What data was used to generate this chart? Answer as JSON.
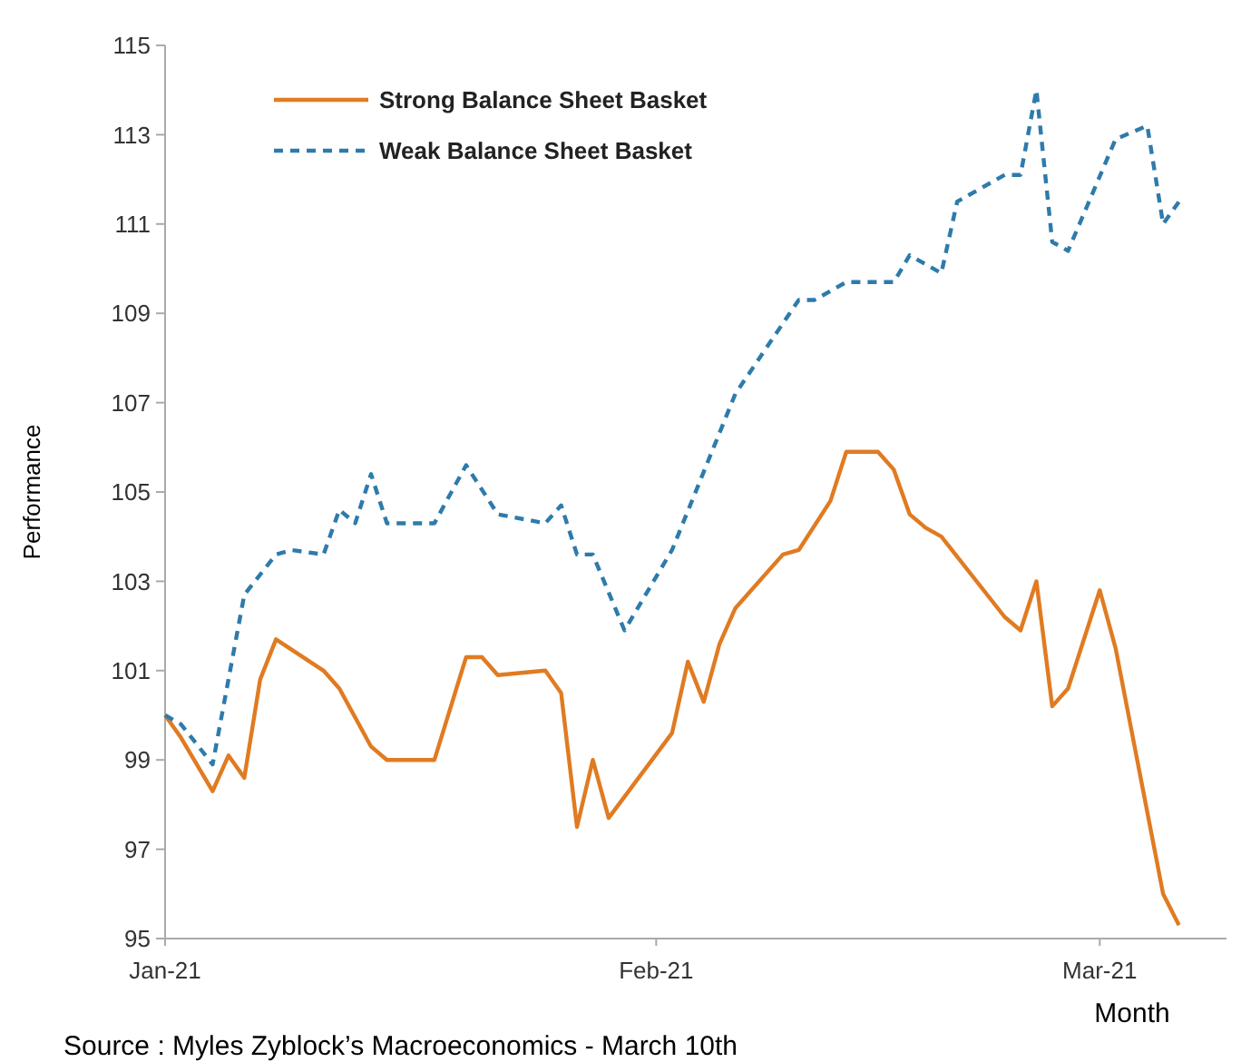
{
  "chart_data": {
    "type": "line",
    "xlabel": "Month",
    "ylabel": "Performance",
    "annotations": [
      "Source : Myles Zyblock’s Macroeconomics - March 10th"
    ],
    "xlim": [
      "2021-01-01",
      "2021-03-09"
    ],
    "xticks": [
      {
        "value": "2021-01-01",
        "label": "Jan-21"
      },
      {
        "value": "2021-02-01",
        "label": "Feb-21"
      },
      {
        "value": "2021-03-01",
        "label": "Mar-21"
      }
    ],
    "ylim": [
      95,
      115
    ],
    "yticks": [
      95,
      97,
      99,
      101,
      103,
      105,
      107,
      109,
      111,
      113,
      115
    ],
    "grid": false,
    "legend": "top left",
    "marker": "none",
    "series": [
      {
        "name": "Strong Balance Sheet Basket",
        "color": "#e07b22",
        "line_style": "solid",
        "x": [
          "2021-01-01",
          "2021-01-02",
          "2021-01-04",
          "2021-01-05",
          "2021-01-06",
          "2021-01-07",
          "2021-01-08",
          "2021-01-11",
          "2021-01-12",
          "2021-01-14",
          "2021-01-15",
          "2021-01-18",
          "2021-01-20",
          "2021-01-21",
          "2021-01-22",
          "2021-01-25",
          "2021-01-26",
          "2021-01-27",
          "2021-01-28",
          "2021-01-29",
          "2021-02-02",
          "2021-02-03",
          "2021-02-04",
          "2021-02-05",
          "2021-02-06",
          "2021-02-09",
          "2021-02-10",
          "2021-02-12",
          "2021-02-13",
          "2021-02-15",
          "2021-02-16",
          "2021-02-17",
          "2021-02-18",
          "2021-02-19",
          "2021-02-23",
          "2021-02-24",
          "2021-02-25",
          "2021-02-26",
          "2021-02-27",
          "2021-03-01",
          "2021-03-02",
          "2021-03-05",
          "2021-03-06"
        ],
        "values": [
          100,
          99.5,
          98.3,
          99.1,
          98.6,
          100.8,
          101.7,
          101.0,
          100.6,
          99.3,
          99.0,
          99.0,
          101.3,
          101.3,
          100.9,
          101.0,
          100.5,
          97.5,
          99.0,
          97.7,
          99.6,
          101.2,
          100.3,
          101.6,
          102.4,
          103.6,
          103.7,
          104.8,
          105.9,
          105.9,
          105.5,
          104.5,
          104.2,
          104.0,
          102.2,
          101.9,
          103.0,
          100.2,
          100.6,
          102.8,
          101.5,
          96.0,
          95.3
        ]
      },
      {
        "name": "Weak Balance Sheet Basket",
        "color": "#2e7bab",
        "line_style": "dashed",
        "x": [
          "2021-01-01",
          "2021-01-02",
          "2021-01-04",
          "2021-01-06",
          "2021-01-08",
          "2021-01-09",
          "2021-01-11",
          "2021-01-12",
          "2021-01-13",
          "2021-01-14",
          "2021-01-15",
          "2021-01-18",
          "2021-01-20",
          "2021-01-22",
          "2021-01-25",
          "2021-01-26",
          "2021-01-27",
          "2021-01-28",
          "2021-01-30",
          "2021-02-02",
          "2021-02-06",
          "2021-02-10",
          "2021-02-11",
          "2021-02-13",
          "2021-02-16",
          "2021-02-17",
          "2021-02-19",
          "2021-02-20",
          "2021-02-23",
          "2021-02-24",
          "2021-02-25",
          "2021-02-26",
          "2021-02-27",
          "2021-03-02",
          "2021-03-04",
          "2021-03-05",
          "2021-03-06"
        ],
        "values": [
          100,
          99.8,
          98.9,
          102.7,
          103.6,
          103.7,
          103.6,
          104.6,
          104.3,
          105.4,
          104.3,
          104.3,
          105.6,
          104.5,
          104.3,
          104.7,
          103.6,
          103.6,
          101.9,
          103.7,
          107.2,
          109.3,
          109.3,
          109.7,
          109.7,
          110.3,
          109.9,
          111.5,
          112.1,
          112.1,
          114.0,
          110.6,
          110.4,
          112.9,
          113.2,
          111.0,
          111.5
        ]
      }
    ]
  }
}
